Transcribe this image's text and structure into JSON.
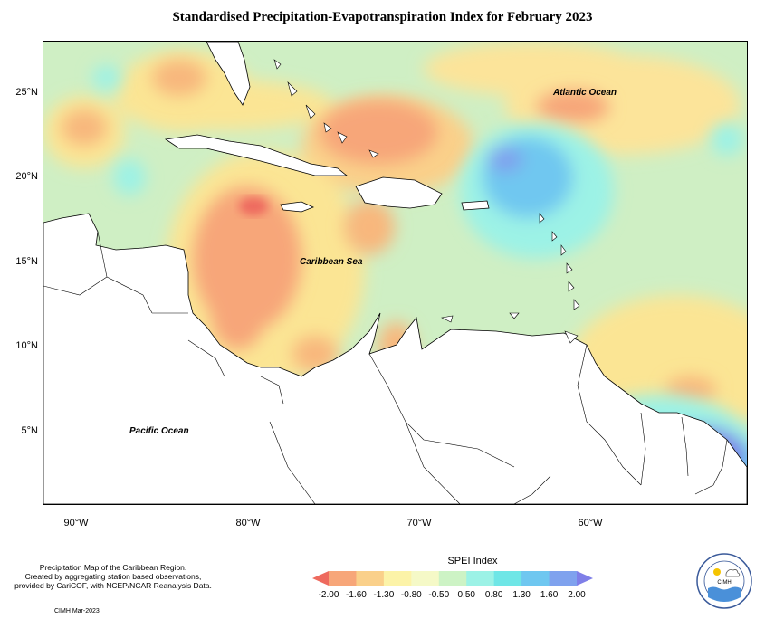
{
  "title": "Standardised Precipitation-Evapotranspiration Index for February 2023",
  "map": {
    "y_ticks": [
      "25°N",
      "20°N",
      "15°N",
      "10°N",
      "5°N"
    ],
    "x_ticks": [
      "90°W",
      "80°W",
      "70°W",
      "60°W"
    ],
    "labels": {
      "atlantic": "Atlantic Ocean",
      "caribbean": "Caribbean Sea",
      "pacific": "Pacific Ocean"
    },
    "extent": {
      "lon": [
        -92,
        -51
      ],
      "lat": [
        1,
        28
      ]
    }
  },
  "legend": {
    "title": "SPEI Index",
    "values": [
      "-2.00",
      "-1.60",
      "-1.30",
      "-0.80",
      "-0.50",
      "0.50",
      "0.80",
      "1.30",
      "1.60",
      "2.00"
    ],
    "colors": [
      "#ee6a5e",
      "#f7a679",
      "#fad08a",
      "#fcf3a8",
      "#f5f9c7",
      "#cdf3c5",
      "#9cf2e6",
      "#6fe6e6",
      "#6fc7f0",
      "#7fa2ee",
      "#7f7fe8"
    ]
  },
  "caption": {
    "line1": "Precipitation Map of the Caribbean Region.",
    "line2": "Created by aggregating station based observations,",
    "line3": "provided by CariCOF, with NCEP/NCAR Reanalysis Data.",
    "credit": "CIMH Mar-2023"
  },
  "logo": {
    "text": "CIMH"
  }
}
